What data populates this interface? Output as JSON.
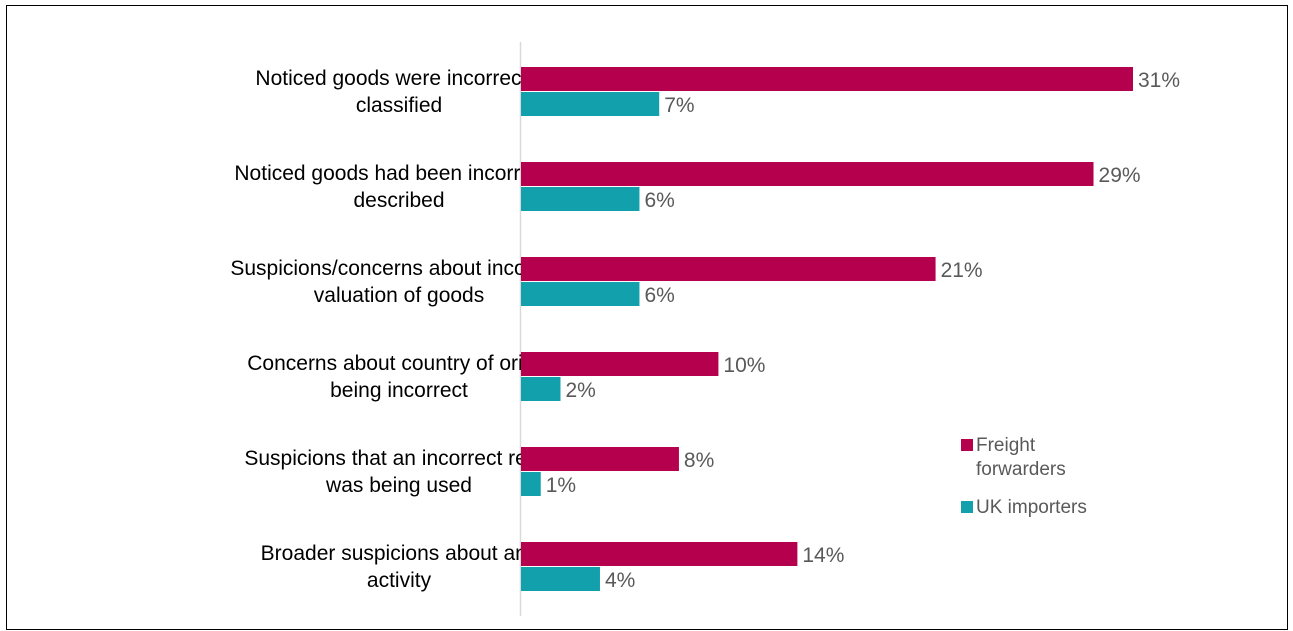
{
  "chart_data": {
    "type": "bar",
    "orientation": "horizontal",
    "categories": [
      [
        "Noticed goods were incorrectly",
        "classified"
      ],
      [
        "Noticed goods had been incorrectly",
        "described"
      ],
      [
        "Suspicions/concerns about incorrect",
        "valuation of goods"
      ],
      [
        "Concerns about country of origin",
        "being incorrect"
      ],
      [
        "Suspicions that an incorrect relief",
        "was being used"
      ],
      [
        "Broader suspicions about any",
        "activity"
      ]
    ],
    "series": [
      {
        "name": "Freight forwarders",
        "legend_lines": [
          "Freight",
          "forwarders"
        ],
        "color": "#b5004d",
        "values": [
          31,
          29,
          21,
          10,
          8,
          14
        ]
      },
      {
        "name": "UK importers",
        "legend_lines": [
          "UK importers"
        ],
        "color": "#12a0ac",
        "values": [
          7,
          6,
          6,
          2,
          1,
          4
        ]
      }
    ],
    "value_suffix": "%",
    "xlim": [
      0,
      31
    ],
    "grid": false,
    "legend_position": "right"
  }
}
